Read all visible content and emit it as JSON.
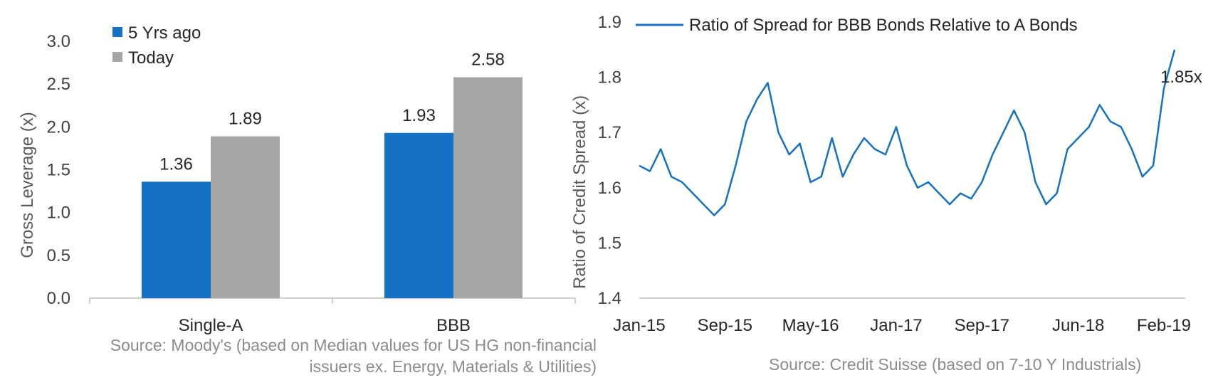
{
  "chart_data": [
    {
      "type": "bar",
      "categories": [
        "Single-A",
        "BBB"
      ],
      "series": [
        {
          "name": "5 Yrs ago",
          "values": [
            1.36,
            1.93
          ],
          "color": "#1471c4"
        },
        {
          "name": "Today",
          "values": [
            1.89,
            2.58
          ],
          "color": "#a6a6a6"
        }
      ],
      "data_labels": [
        [
          "1.36",
          "1.93"
        ],
        [
          "1.89",
          "2.58"
        ]
      ],
      "ylabel": "Gross Leverage (x)",
      "ylim": [
        0,
        3.0
      ],
      "yticks": [
        "0.0",
        "0.5",
        "1.0",
        "1.5",
        "2.0",
        "2.5",
        "3.0"
      ],
      "legend_position": "top-left",
      "grid": false,
      "source": [
        "Source: Moody's (based on Median values for US HG non-financial",
        "issuers ex. Energy, Materials & Utilities)"
      ]
    },
    {
      "type": "line",
      "series": [
        {
          "name": "Ratio of Spread for BBB Bonds Relative to A Bonds",
          "color": "#1471c4",
          "x": [
            "2015-01",
            "2015-02",
            "2015-03",
            "2015-04",
            "2015-05",
            "2015-06",
            "2015-07",
            "2015-08",
            "2015-09",
            "2015-10",
            "2015-11",
            "2015-12",
            "2016-01",
            "2016-02",
            "2016-03",
            "2016-04",
            "2016-05",
            "2016-06",
            "2016-07",
            "2016-08",
            "2016-09",
            "2016-10",
            "2016-11",
            "2016-12",
            "2017-01",
            "2017-02",
            "2017-03",
            "2017-04",
            "2017-05",
            "2017-06",
            "2017-07",
            "2017-08",
            "2017-09",
            "2017-10",
            "2017-11",
            "2017-12",
            "2018-01",
            "2018-02",
            "2018-03",
            "2018-04",
            "2018-05",
            "2018-06",
            "2018-07",
            "2018-08",
            "2018-09",
            "2018-10",
            "2018-11",
            "2018-12",
            "2019-01",
            "2019-02",
            "2019-03"
          ],
          "values": [
            1.64,
            1.63,
            1.67,
            1.62,
            1.61,
            1.59,
            1.57,
            1.55,
            1.57,
            1.64,
            1.72,
            1.76,
            1.79,
            1.7,
            1.66,
            1.68,
            1.61,
            1.62,
            1.69,
            1.62,
            1.66,
            1.69,
            1.67,
            1.66,
            1.71,
            1.64,
            1.6,
            1.61,
            1.59,
            1.57,
            1.59,
            1.58,
            1.61,
            1.66,
            1.7,
            1.74,
            1.7,
            1.61,
            1.57,
            1.59,
            1.67,
            1.69,
            1.71,
            1.75,
            1.72,
            1.71,
            1.67,
            1.62,
            1.64,
            1.78,
            1.85
          ]
        }
      ],
      "end_label": "1.85x",
      "ylabel": "Ratio of Credit Spread (x)",
      "ylim": [
        1.4,
        1.9
      ],
      "yticks": [
        "1.4",
        "1.5",
        "1.6",
        "1.7",
        "1.8",
        "1.9"
      ],
      "xticks": [
        {
          "label": "Jan-15",
          "date": "2015-01"
        },
        {
          "label": "Sep-15",
          "date": "2015-09"
        },
        {
          "label": "May-16",
          "date": "2016-05"
        },
        {
          "label": "Jan-17",
          "date": "2017-01"
        },
        {
          "label": "Sep-17",
          "date": "2017-09"
        },
        {
          "label": "Jun-18",
          "date": "2018-06"
        },
        {
          "label": "Feb-19",
          "date": "2019-02"
        }
      ],
      "legend_position": "top",
      "grid": false,
      "source": "Source: Credit Suisse (based on 7-10 Y Industrials)"
    }
  ]
}
